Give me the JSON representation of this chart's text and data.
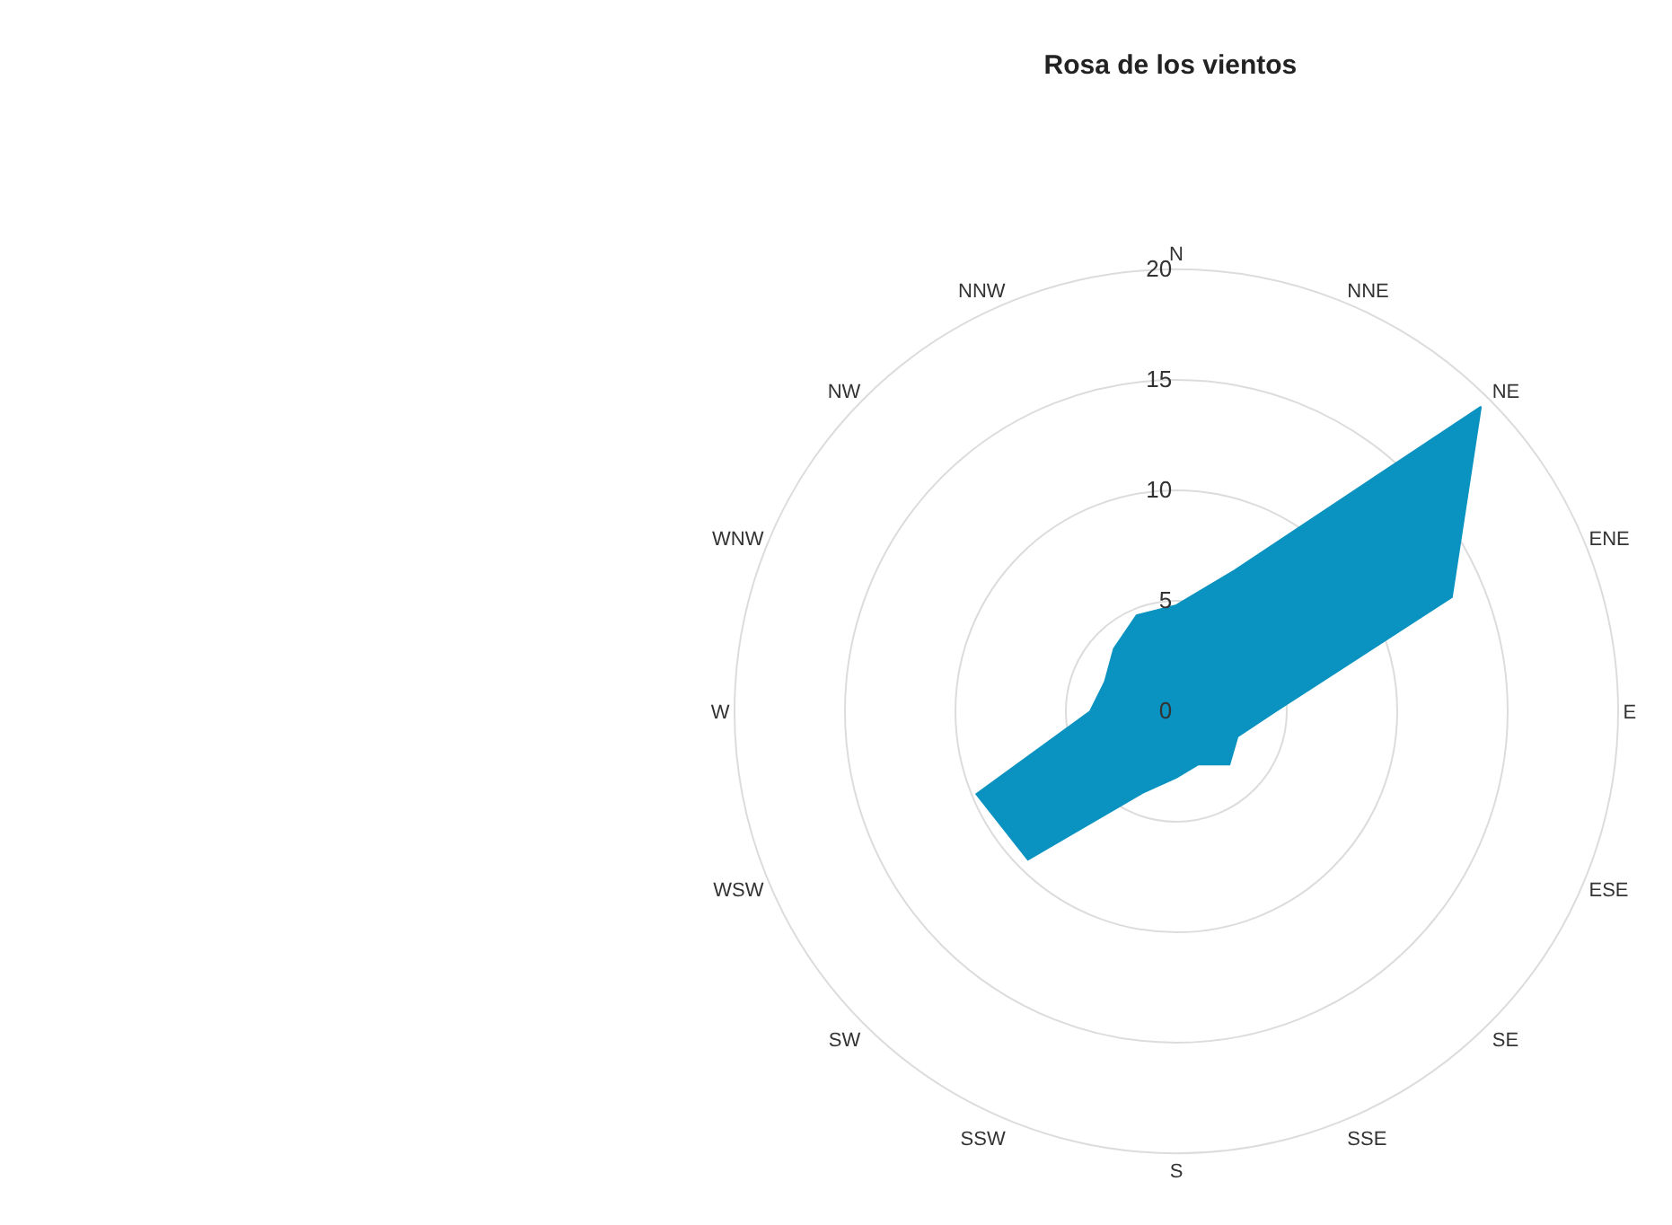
{
  "chart_data": {
    "type": "radar",
    "title": "Rosa de los vientos",
    "categories": [
      "N",
      "NNE",
      "NE",
      "ENE",
      "E",
      "ESE",
      "SE",
      "SSE",
      "S",
      "SSW",
      "SW",
      "WSW",
      "W",
      "WNW",
      "NW",
      "NNW"
    ],
    "series": [
      {
        "color": "#0a93c0",
        "values": [
          4.8,
          6.9,
          19.5,
          13.5,
          4.5,
          3,
          3.4,
          2.6,
          3,
          4,
          9.5,
          9.8,
          3.9,
          3.5,
          4,
          4.7
        ]
      }
    ],
    "ylim": [
      0,
      20
    ],
    "yticks": [
      0,
      5,
      10,
      15,
      20
    ],
    "grid": true
  }
}
